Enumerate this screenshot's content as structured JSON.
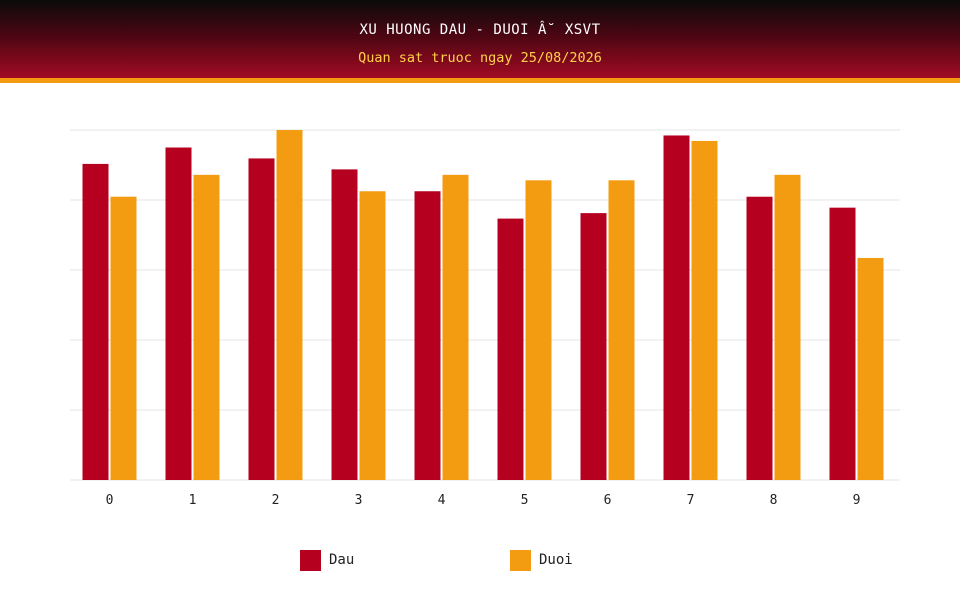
{
  "header": {
    "title": "XU HUONG DAU - DUOI Â˘ XSVT",
    "subtitle": "Quan sat truoc ngay 25/08/2026"
  },
  "colors": {
    "dau": "#b5001f",
    "duoi": "#f39c12",
    "grid": "#e5e5e5"
  },
  "chart_data": {
    "type": "bar",
    "categories": [
      "0",
      "1",
      "2",
      "3",
      "4",
      "5",
      "6",
      "7",
      "8",
      "9"
    ],
    "series": [
      {
        "name": "Dau",
        "values": [
          28.9,
          30.4,
          29.4,
          28.4,
          26.4,
          23.9,
          24.4,
          31.5,
          25.9,
          24.9
        ]
      },
      {
        "name": "Duoi",
        "values": [
          25.9,
          27.9,
          32.0,
          26.4,
          27.9,
          27.4,
          27.4,
          31.0,
          27.9,
          20.3
        ]
      }
    ],
    "ylim": [
      0,
      32
    ],
    "grid": true,
    "legend_position": "bottom"
  },
  "legend": {
    "items": [
      {
        "label": "Dau"
      },
      {
        "label": "Duoi"
      }
    ]
  }
}
